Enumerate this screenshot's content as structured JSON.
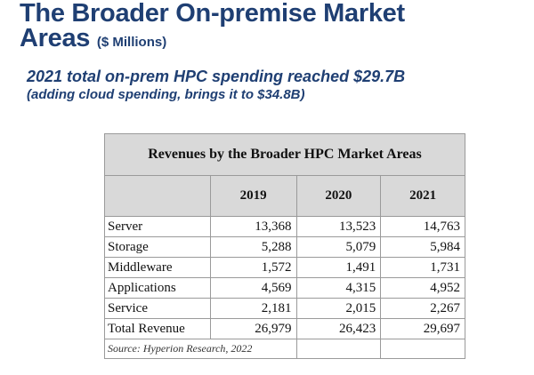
{
  "slide": {
    "title_line1": "The Broader On-premise Market",
    "title_line2": "Areas",
    "title_unit": "($ Millions)",
    "subtitle_line1": "2021 total on-prem HPC spending reached $29.7B",
    "subtitle_line2": "(adding cloud spending, brings it to $34.8B)"
  },
  "table": {
    "caption": "Revenues by the Broader HPC Market Areas",
    "columns": [
      "2019",
      "2020",
      "2021"
    ],
    "rows": [
      {
        "label": "Server",
        "values": [
          "13,368",
          "13,523",
          "14,763"
        ]
      },
      {
        "label": "Storage",
        "values": [
          "5,288",
          "5,079",
          "5,984"
        ]
      },
      {
        "label": "Middleware",
        "values": [
          "1,572",
          "1,491",
          "1,731"
        ]
      },
      {
        "label": "Applications",
        "values": [
          "4,569",
          "4,315",
          "4,952"
        ]
      },
      {
        "label": "Service",
        "values": [
          "2,181",
          "2,015",
          "2,267"
        ]
      },
      {
        "label": "Total Revenue",
        "values": [
          "26,979",
          "26,423",
          "29,697"
        ]
      }
    ],
    "source": "Source: Hyperion Research, 2022"
  }
}
